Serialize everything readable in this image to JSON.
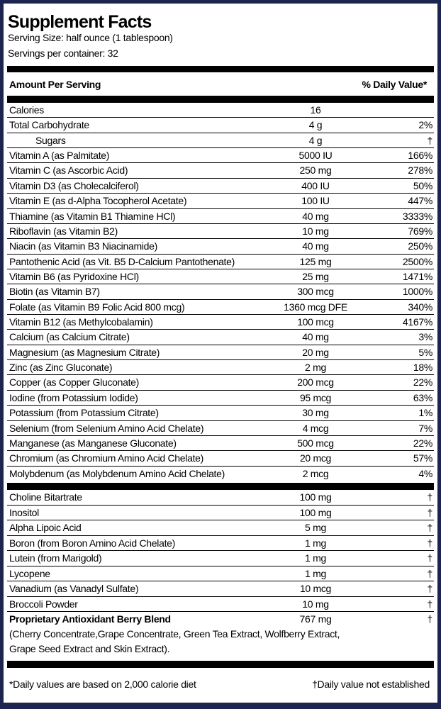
{
  "header": {
    "title": "Supplement Facts",
    "serving_size": "Serving Size: half ounce (1 tablespoon)",
    "servings_per_container": "Servings per container: 32"
  },
  "table": {
    "column_headers": [
      "Amount Per Serving",
      "% Daily Value*"
    ],
    "rows": [
      [
        "Calories",
        "16"
      ],
      [
        "Total Carbohydrate",
        "4 g",
        "2%"
      ],
      [
        "Sugars",
        "4 g",
        "†"
      ],
      [
        "Vitamin A (as Palmitate)",
        "5000 IU",
        "166%"
      ],
      [
        "Vitamin C (as Ascorbic Acid)",
        "250 mg",
        "278%"
      ],
      [
        "Vitamin D3 (as Cholecalciferol)",
        "400 IU",
        "50%"
      ],
      [
        "Vitamin E (as d-Alpha Tocopherol Acetate)",
        "100 IU",
        "447%"
      ],
      [
        "Thiamine (as Vitamin B1 Thiamine HCl)",
        "40 mg",
        "3333%"
      ],
      [
        "Riboflavin (as Vitamin B2)",
        "10 mg",
        "769%"
      ],
      [
        "Niacin (as Vitamin B3 Niacinamide)",
        "40 mg",
        "250%"
      ],
      [
        "Pantothenic Acid (as Vit. B5 D-Calcium Pantothenate)",
        "125 mg",
        "2500%"
      ],
      [
        "Vitamin B6 (as Pyridoxine HCl)",
        "25 mg",
        "1471%"
      ],
      [
        "Biotin (as Vitamin B7)",
        "300 mcg",
        "1000%"
      ],
      [
        "Folate (as Vitamin B9 Folic Acid 800 mcg)",
        "1360 mcg DFE",
        "340%"
      ],
      [
        "Vitamin B12 (as Methylcobalamin)",
        "100 mcg",
        "4167%"
      ],
      [
        "Calcium (as Calcium Citrate)",
        "40 mg",
        "3%"
      ],
      [
        "Magnesium (as Magnesium Citrate)",
        "20 mg",
        "5%"
      ],
      [
        "Zinc (as Zinc Gluconate)",
        "2 mg",
        "18%"
      ],
      [
        "Copper (as Copper Gluconate)",
        "200 mcg",
        "22%"
      ],
      [
        "Iodine (from Potassium Iodide)",
        "95 mcg",
        "63%"
      ],
      [
        "Potassium (from Potassium Citrate)",
        "30 mg",
        "1%"
      ],
      [
        "Selenium (from Selenium Amino Acid Chelate)",
        "4 mcg",
        "7%"
      ],
      [
        "Manganese (as Manganese Gluconate)",
        "500 mcg",
        "22%"
      ],
      [
        "Chromium (as Chromium Amino Acid Chelate)",
        "20 mcg",
        "57%"
      ],
      [
        "Molybdenum (as Molybdenum Amino Acid Chelate)",
        "2 mcg",
        "4%"
      ]
    ]
  },
  "table2": {
    "rows": [
      [
        "Choline Bitartrate",
        "100 mg",
        "†"
      ],
      [
        "Inositol",
        "100 mg",
        "†"
      ],
      [
        "Alpha Lipoic Acid",
        "5 mg",
        "†"
      ],
      [
        "Boron (from Boron Amino Acid Chelate)",
        "1 mg",
        "†"
      ],
      [
        "Lutein (from Marigold)",
        "1 mg",
        "†"
      ],
      [
        "Lycopene",
        "1 mg",
        "†"
      ],
      [
        "Vanadium (as Vanadyl Sulfate)",
        "10 mcg",
        "†"
      ],
      [
        "Broccoli Powder",
        "10 mg",
        "†"
      ]
    ]
  },
  "blend": {
    "name": "Proprietary Antioxidant Berry Blend",
    "amount": "767 mg",
    "daily_value": "†",
    "description": [
      "(Cherry Concentrate,Grape Concentrate, Green Tea Extract, Wolfberry Extract,",
      "Grape Seed Extract and Skin Extract)."
    ]
  },
  "footnotes": [
    "*Daily values are based on 2,000 calorie diet",
    "†Daily value not established"
  ]
}
